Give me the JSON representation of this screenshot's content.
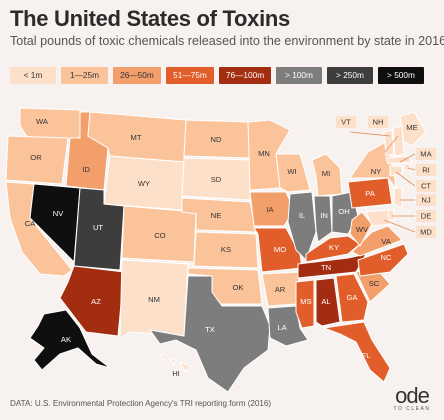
{
  "title": "The United States of Toxins",
  "subtitle": "Total pounds of toxic chemicals released into the environment by state in 2016",
  "legend": [
    {
      "label": "< 1m",
      "color": "#fde0c9",
      "text_color": "#333333"
    },
    {
      "label": "1—25m",
      "color": "#fbc39a",
      "text_color": "#333333"
    },
    {
      "label": "26—50m",
      "color": "#f29f6b",
      "text_color": "#333333"
    },
    {
      "label": "51—75m",
      "color": "#e15d2a",
      "text_color": "#ffffff"
    },
    {
      "label": "76—100m",
      "color": "#a32d10",
      "text_color": "#ffffff"
    },
    {
      "label": "> 100m",
      "color": "#7d7d7d",
      "text_color": "#ffffff"
    },
    {
      "label": "> 250m",
      "color": "#3d3d3d",
      "text_color": "#ffffff"
    },
    {
      "label": "> 500m",
      "color": "#0f0f0f",
      "text_color": "#ffffff"
    }
  ],
  "states": {
    "WA": 1,
    "OR": 1,
    "CA": 1,
    "ID": 2,
    "MT": 1,
    "WY": 0,
    "NV": 7,
    "UT": 6,
    "AZ": 4,
    "CO": 1,
    "NM": 0,
    "ND": 1,
    "SD": 0,
    "NE": 1,
    "KS": 1,
    "OK": 1,
    "TX": 5,
    "MN": 1,
    "IA": 2,
    "MO": 3,
    "AR": 1,
    "LA": 5,
    "WI": 1,
    "IL": 5,
    "MI": 1,
    "IN": 5,
    "OH": 5,
    "KY": 3,
    "TN": 4,
    "MS": 3,
    "AL": 4,
    "GA": 3,
    "FL": 3,
    "SC": 2,
    "NC": 3,
    "VA": 2,
    "WV": 2,
    "PA": 3,
    "NY": 1,
    "ME": 0,
    "VT": 0,
    "NH": 0,
    "MA": 0,
    "RI": 0,
    "CT": 0,
    "NJ": 0,
    "DE": 0,
    "MD": 0,
    "AK": 7,
    "HI": 0
  },
  "footer": "DATA: U.S. Environmental Protection Agency's TRI reporting form (2016)",
  "logo": {
    "word": "ode",
    "sub": "TO CLEAN"
  }
}
